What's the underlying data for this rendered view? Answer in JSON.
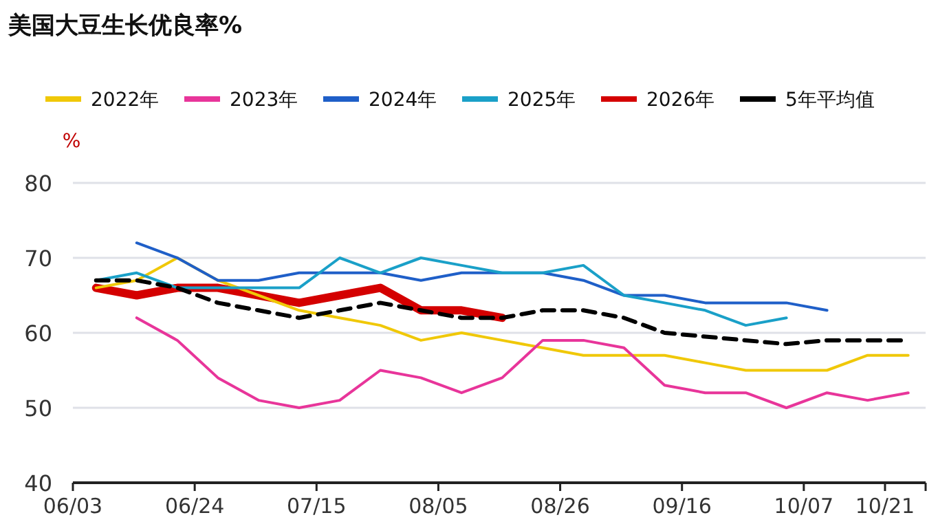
{
  "chart_data": {
    "type": "line",
    "title": "美国大豆生长优良率%",
    "ylabel": "%",
    "x": [
      "--06-07",
      "--06-14",
      "--06-21",
      "--06-28",
      "--07-05",
      "--07-12",
      "--07-19",
      "--07-26",
      "--08-02",
      "--08-09",
      "--08-16",
      "--08-23",
      "--08-30",
      "--09-06",
      "--09-13",
      "--09-20",
      "--09-27",
      "--10-04",
      "--10-11",
      "--10-18",
      "--10-25"
    ],
    "xlim": [
      "--06-03",
      "--10-28"
    ],
    "xticks": [
      {
        "value": "--06-03",
        "label": "06/03"
      },
      {
        "value": "--06-24",
        "label": "06/24"
      },
      {
        "value": "--07-15",
        "label": "07/15"
      },
      {
        "value": "--08-05",
        "label": "08/05"
      },
      {
        "value": "--08-26",
        "label": "08/26"
      },
      {
        "value": "--09-16",
        "label": "09/16"
      },
      {
        "value": "--10-07",
        "label": "10/07"
      },
      {
        "value": "--10-21",
        "label": "10/21"
      },
      {
        "value": "--10-28",
        "label": null
      }
    ],
    "ylim": [
      40,
      80
    ],
    "yticks": [
      40,
      50,
      60,
      70,
      80
    ],
    "grid": "y",
    "legend": "top",
    "series": [
      {
        "name": "2022年",
        "color": "#f0c808",
        "values": [
          66,
          67,
          70,
          67,
          65,
          63,
          62,
          61,
          59,
          60,
          59,
          58,
          57,
          57,
          57,
          56,
          55,
          55,
          55,
          57,
          57
        ]
      },
      {
        "name": "2023年",
        "color": "#e8359a",
        "values": [
          null,
          62,
          59,
          54,
          51,
          50,
          51,
          55,
          54,
          52,
          54,
          59,
          59,
          58,
          53,
          52,
          52,
          50,
          52,
          51,
          52
        ]
      },
      {
        "name": "2024年",
        "color": "#1f5fc8",
        "values": [
          null,
          72,
          70,
          67,
          67,
          68,
          68,
          68,
          67,
          68,
          68,
          68,
          67,
          65,
          65,
          64,
          64,
          64,
          63,
          null,
          null
        ]
      },
      {
        "name": "2025年",
        "color": "#1aa0c8",
        "values": [
          67,
          68,
          66,
          66,
          66,
          66,
          70,
          68,
          70,
          69,
          68,
          68,
          69,
          65,
          64,
          63,
          61,
          62,
          null,
          null,
          null
        ]
      },
      {
        "name": "2026年",
        "color": "#d40000",
        "values": [
          66,
          65,
          66,
          66,
          65,
          64,
          65,
          66,
          63,
          63,
          62,
          null,
          null,
          null,
          null,
          null,
          null,
          null,
          null,
          null,
          null
        ]
      },
      {
        "name": "5年平均值",
        "color": "#000000",
        "line_style": "dashed",
        "values": [
          67,
          67,
          66,
          64,
          63,
          62,
          63,
          64,
          63,
          62,
          62,
          63,
          63,
          62,
          60,
          59.5,
          59,
          58.5,
          59,
          59,
          59
        ]
      }
    ]
  }
}
